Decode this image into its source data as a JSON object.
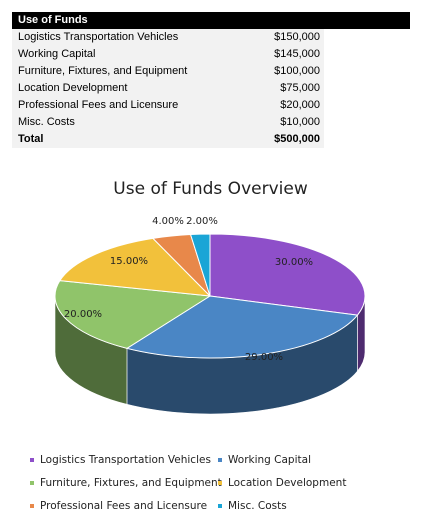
{
  "table": {
    "header": "Use of Funds",
    "rows": [
      {
        "label": "Logistics Transportation Vehicles",
        "value": "$150,000"
      },
      {
        "label": "Working Capital",
        "value": "$145,000"
      },
      {
        "label": "Furniture, Fixtures, and Equipment",
        "value": "$100,000"
      },
      {
        "label": "Location Development",
        "value": "$75,000"
      },
      {
        "label": "Professional Fees and Licensure",
        "value": "$20,000"
      },
      {
        "label": "Misc. Costs",
        "value": "$10,000"
      }
    ],
    "total_label": "Total",
    "total_value": "$500,000"
  },
  "chart_data": {
    "type": "pie",
    "title": "Use of Funds Overview",
    "categories": [
      "Logistics Transportation Vehicles",
      "Working Capital",
      "Furniture, Fixtures, and Equipment",
      "Location Development",
      "Professional Fees and Licensure",
      "Misc. Costs"
    ],
    "values": [
      30.0,
      29.0,
      20.0,
      15.0,
      4.0,
      2.0
    ],
    "labels": [
      "30.00%",
      "29.00%",
      "20.00%",
      "15.00%",
      "4.00%",
      "2.00%"
    ],
    "colors": [
      "#8e4fc9",
      "#4a86c5",
      "#90c46a",
      "#f2c13b",
      "#e8884a",
      "#1aa5d6"
    ],
    "style": "3d-pie",
    "legend_position": "bottom"
  }
}
